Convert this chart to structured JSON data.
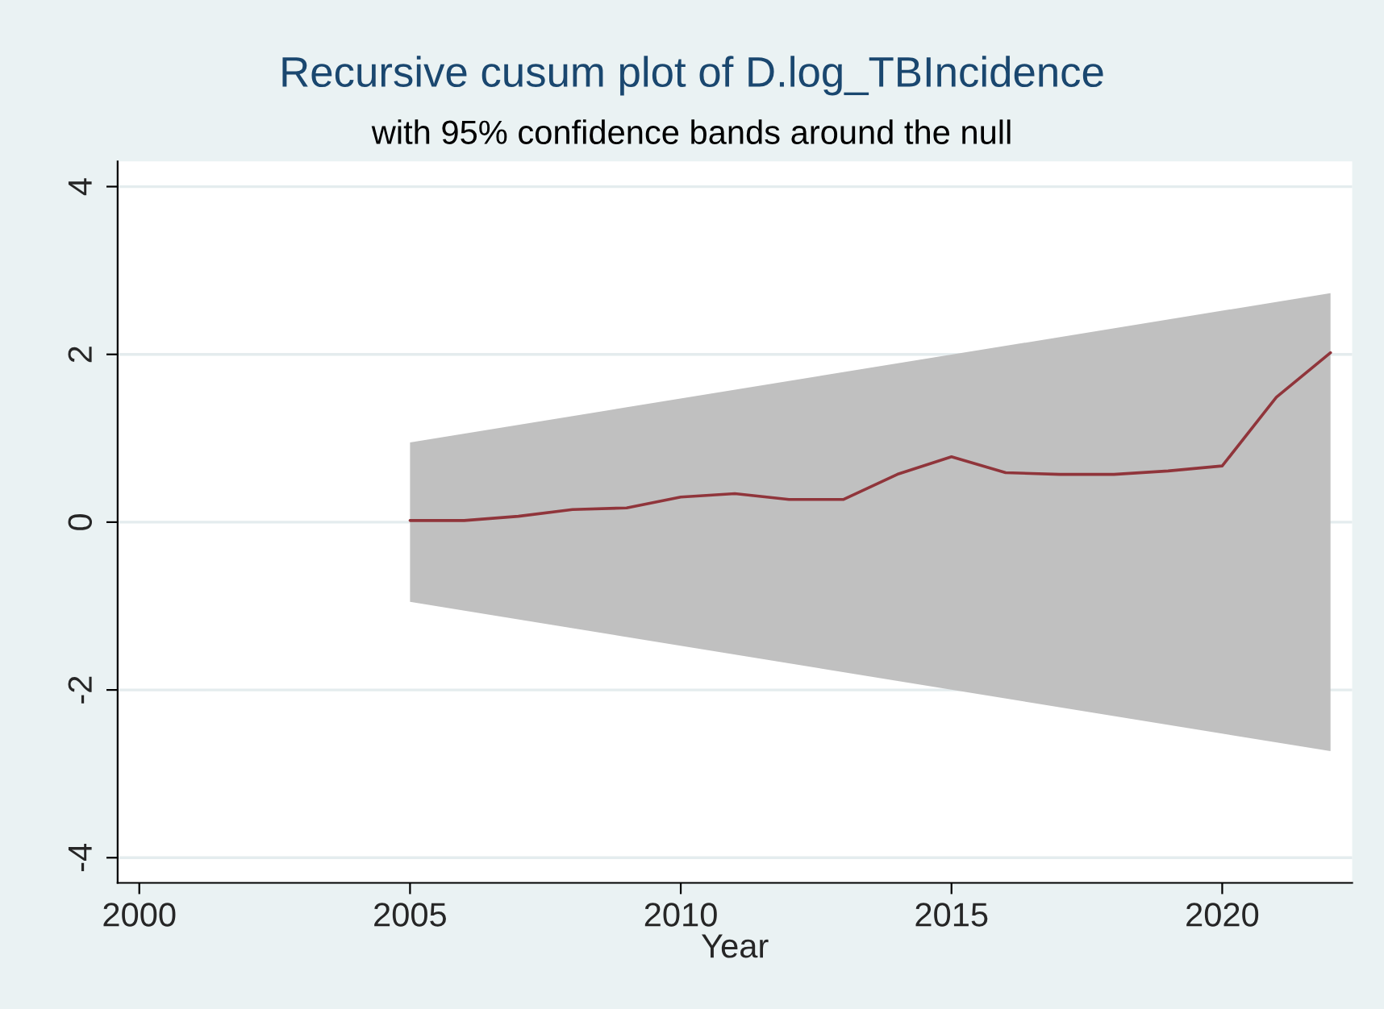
{
  "chart_data": {
    "type": "line",
    "title": "Recursive cusum plot of D.log_TBIncidence",
    "subtitle": "with 95% confidence bands around the null",
    "xlabel": "Year",
    "series": [
      {
        "type": "area",
        "color": "#c0c0c0",
        "x": [
          2005,
          2022
        ],
        "values": [
          null,
          null
        ],
        "lower": [
          -0.95,
          -2.73
        ],
        "upper": [
          0.95,
          2.73
        ]
      },
      {
        "color": "#90353b",
        "x": [
          2005,
          2006,
          2007,
          2008,
          2009,
          2010,
          2011,
          2012,
          2013,
          2014,
          2015,
          2016,
          2017,
          2018,
          2019,
          2020,
          2021,
          2022
        ],
        "values": [
          0.02,
          0.02,
          0.07,
          0.15,
          0.17,
          0.3,
          0.34,
          0.27,
          0.27,
          0.57,
          0.78,
          0.59,
          0.57,
          0.57,
          0.61,
          0.67,
          1.49,
          2.02
        ]
      }
    ],
    "xlim": [
      1999.6,
      2022.4
    ],
    "xticks": [
      2000,
      2005,
      2010,
      2015,
      2020
    ],
    "ylim": [
      -4.3,
      4.3
    ],
    "yticks": [
      -4,
      -2,
      0,
      2,
      4
    ],
    "grid": "y",
    "legend": false
  }
}
